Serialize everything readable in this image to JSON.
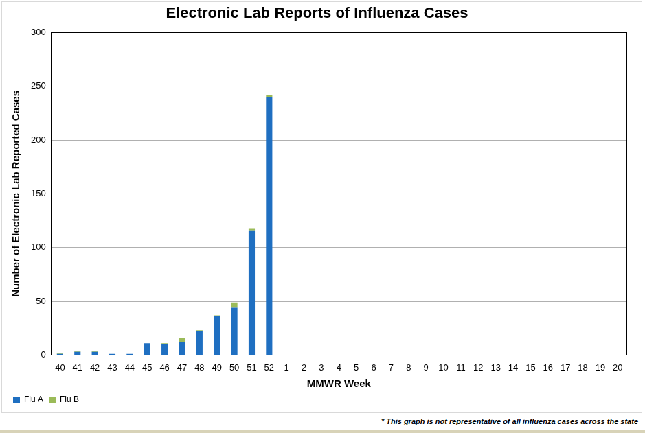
{
  "chart_data": {
    "type": "bar",
    "title": "Electronic Lab Reports of Influenza Cases",
    "x_label": "MMWR Week",
    "y_label": "Number of Electronic Lab Reported Cases",
    "footnote": "* This graph is not representative of all influenza cases across the state",
    "categories": [
      "40",
      "41",
      "42",
      "43",
      "44",
      "45",
      "46",
      "47",
      "48",
      "49",
      "50",
      "51",
      "52",
      "1",
      "2",
      "3",
      "4",
      "5",
      "6",
      "7",
      "8",
      "9",
      "10",
      "11",
      "12",
      "13",
      "14",
      "15",
      "16",
      "17",
      "18",
      "19",
      "20"
    ],
    "series": [
      {
        "name": "Flu A",
        "color": "#1f6fc1",
        "values": [
          1,
          3,
          3,
          1,
          1,
          11,
          10,
          12,
          22,
          36,
          44,
          116,
          240,
          null,
          null,
          null,
          null,
          null,
          null,
          null,
          null,
          null,
          null,
          null,
          null,
          null,
          null,
          null,
          null,
          null,
          null,
          null,
          null
        ]
      },
      {
        "name": "Flu B",
        "color": "#9bbb59",
        "values": [
          1,
          1,
          1,
          0,
          0,
          0,
          1,
          4,
          1,
          1,
          5,
          2,
          2,
          null,
          null,
          null,
          null,
          null,
          null,
          null,
          null,
          null,
          null,
          null,
          null,
          null,
          null,
          null,
          null,
          null,
          null,
          null,
          null
        ]
      }
    ],
    "stacked": true,
    "ylim": [
      0,
      300
    ],
    "yticks": [
      0,
      50,
      100,
      150,
      200,
      250,
      300
    ],
    "grid": true,
    "legend": "bottom-left"
  }
}
